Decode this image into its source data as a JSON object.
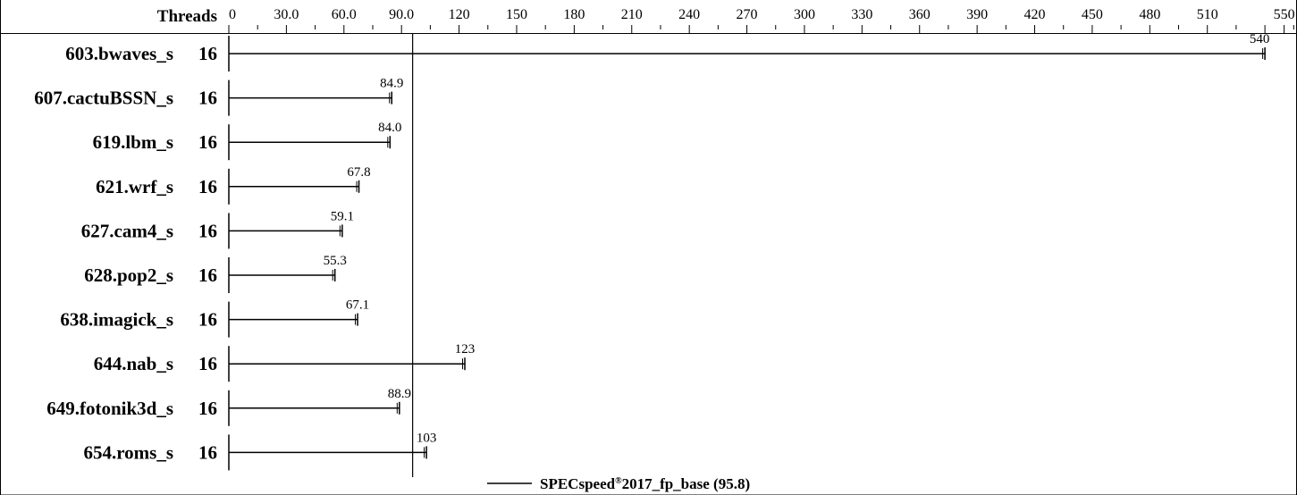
{
  "chart_data": {
    "type": "bar",
    "header": "Threads",
    "categories": [
      "603.bwaves_s",
      "607.cactuBSSN_s",
      "619.lbm_s",
      "621.wrf_s",
      "627.cam4_s",
      "628.pop2_s",
      "638.imagick_s",
      "644.nab_s",
      "649.fotonik3d_s",
      "654.roms_s"
    ],
    "threads": [
      16,
      16,
      16,
      16,
      16,
      16,
      16,
      16,
      16,
      16
    ],
    "values": [
      540,
      84.9,
      84.0,
      67.8,
      59.1,
      55.3,
      67.1,
      123,
      88.9,
      103
    ],
    "value_labels": [
      "540",
      "84.9",
      "84.0",
      "67.8",
      "59.1",
      "55.3",
      "67.1",
      "123",
      "88.9",
      "103"
    ],
    "xlim": [
      0,
      555
    ],
    "tick_labels": [
      "0",
      "30.0",
      "60.0",
      "90.0",
      "120",
      "150",
      "180",
      "210",
      "240",
      "270",
      "300",
      "330",
      "360",
      "390",
      "420",
      "450",
      "480",
      "510",
      "550"
    ],
    "tick_values": [
      0,
      30,
      60,
      90,
      120,
      150,
      180,
      210,
      240,
      270,
      300,
      330,
      360,
      390,
      420,
      450,
      480,
      510,
      550
    ],
    "reference_value": 95.8,
    "legend": {
      "label_prefix": "SPECspeed",
      "label_reg": "®",
      "label_suffix": "2017_fp_base (95.8)"
    }
  }
}
